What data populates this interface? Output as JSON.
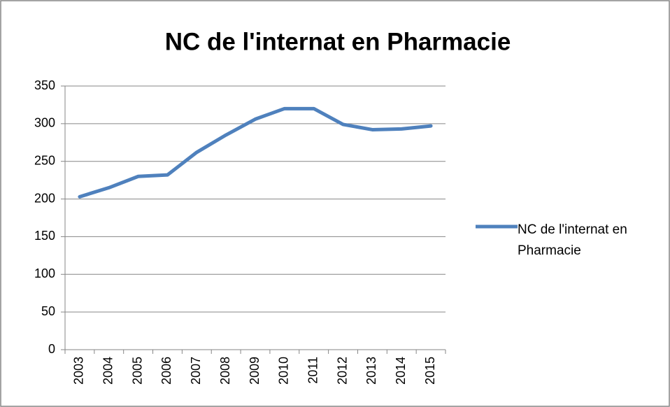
{
  "chart_data": {
    "type": "line",
    "title": "NC de l'internat en Pharmacie",
    "categories": [
      "2003",
      "2004",
      "2005",
      "2006",
      "2007",
      "2008",
      "2009",
      "2010",
      "2011",
      "2012",
      "2013",
      "2014",
      "2015"
    ],
    "series": [
      {
        "name": "NC de l'internat en Pharmacie",
        "color": "#4f81bd",
        "values": [
          203,
          215,
          230,
          232,
          262,
          285,
          306,
          320,
          320,
          299,
          292,
          293,
          297
        ]
      }
    ],
    "ylim": [
      0,
      350
    ],
    "yticks": [
      0,
      50,
      100,
      150,
      200,
      250,
      300,
      350
    ],
    "grid": true,
    "legend": "right"
  }
}
